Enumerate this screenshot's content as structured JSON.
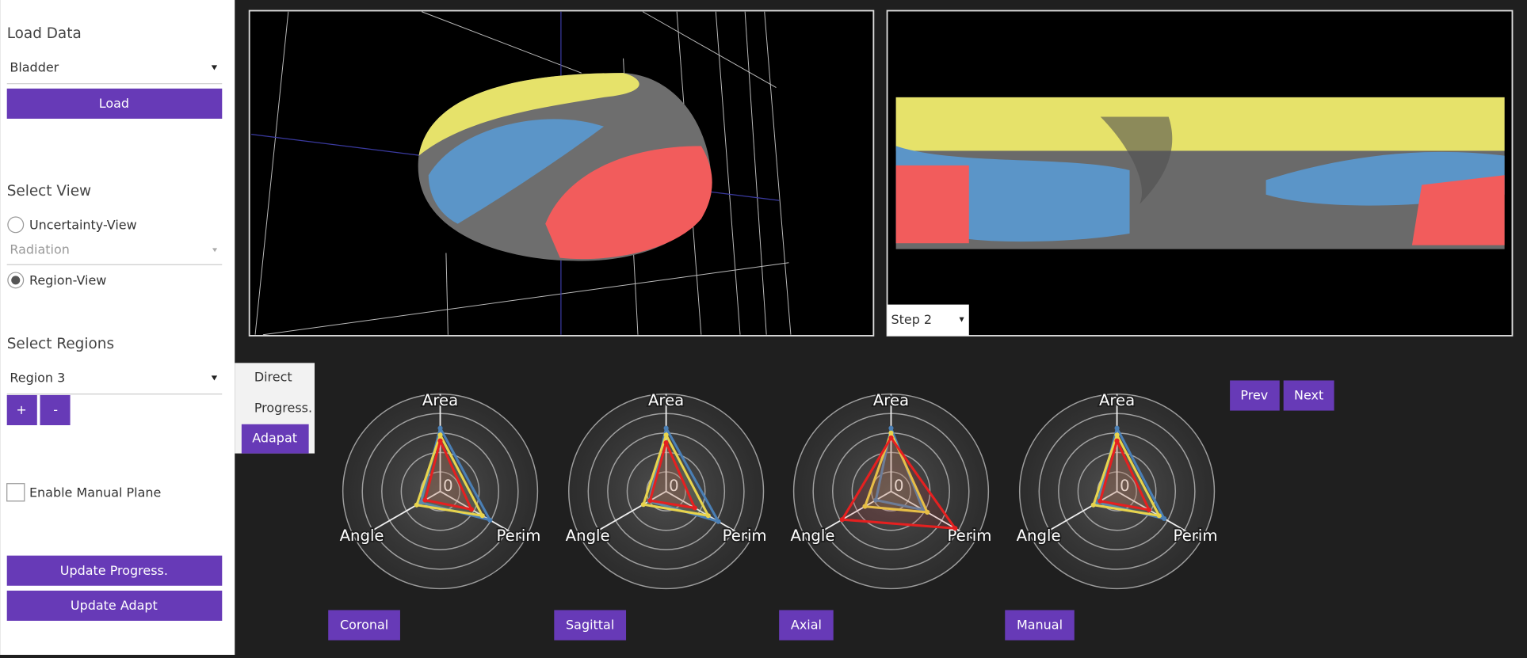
{
  "sidebar": {
    "load_data": {
      "title": "Load Data",
      "select": "Bladder",
      "button": "Load"
    },
    "select_view": {
      "title": "Select View",
      "options": [
        "Uncertainty-View",
        "Region-View"
      ],
      "sub_select": "Radiation"
    },
    "select_regions": {
      "title": "Select Regions",
      "select": "Region 3",
      "buttons": [
        "+",
        "-"
      ]
    },
    "manual_plane": "Enable Manual Plane",
    "buttons": [
      "Update Progress.",
      "Update Adapt"
    ]
  },
  "views": {
    "step_select": "Step 2"
  },
  "modes": [
    "Direct",
    "Progress.",
    "Adapat"
  ],
  "nav": [
    "Prev",
    "Next"
  ],
  "chart_data": [
    {
      "type": "radar",
      "title": "Coronal",
      "axes": [
        "Area",
        "Perim",
        "Angle"
      ],
      "rlim": [
        0,
        1
      ],
      "rticks": [
        0
      ],
      "series": [
        {
          "color": "#4a7fb5",
          "values": [
            0.65,
            0.59,
            0.23
          ]
        },
        {
          "color": "#e8d44d",
          "values": [
            0.58,
            0.5,
            0.28
          ]
        },
        {
          "color": "#e52020",
          "values": [
            0.52,
            0.37,
            0.18
          ]
        }
      ]
    },
    {
      "type": "radar",
      "title": "Sagittal",
      "axes": [
        "Area",
        "Perim",
        "Angle"
      ],
      "rlim": [
        0,
        1
      ],
      "rticks": [
        0
      ],
      "series": [
        {
          "color": "#4a7fb5",
          "values": [
            0.65,
            0.62,
            0.2
          ]
        },
        {
          "color": "#e8d44d",
          "values": [
            0.58,
            0.5,
            0.27
          ]
        },
        {
          "color": "#e52020",
          "values": [
            0.5,
            0.34,
            0.19
          ]
        }
      ]
    },
    {
      "type": "radar",
      "title": "Axial",
      "axes": [
        "Area",
        "Perim",
        "Angle"
      ],
      "rlim": [
        0,
        1
      ],
      "rticks": [
        0
      ],
      "series": [
        {
          "color": "#4a7fb5",
          "values": [
            0.65,
            0.38,
            0.18
          ]
        },
        {
          "color": "#e8d44d",
          "values": [
            0.6,
            0.43,
            0.31
          ]
        },
        {
          "color": "#e52020",
          "values": [
            0.55,
            0.76,
            0.58
          ]
        }
      ]
    },
    {
      "type": "radar",
      "title": "Manual",
      "axes": [
        "Area",
        "Perim",
        "Angle"
      ],
      "rlim": [
        0,
        1
      ],
      "rticks": [
        0
      ],
      "series": [
        {
          "color": "#4a7fb5",
          "values": [
            0.65,
            0.56,
            0.23
          ]
        },
        {
          "color": "#e8d44d",
          "values": [
            0.58,
            0.5,
            0.28
          ]
        },
        {
          "color": "#e52020",
          "values": [
            0.52,
            0.38,
            0.2
          ]
        }
      ]
    }
  ]
}
